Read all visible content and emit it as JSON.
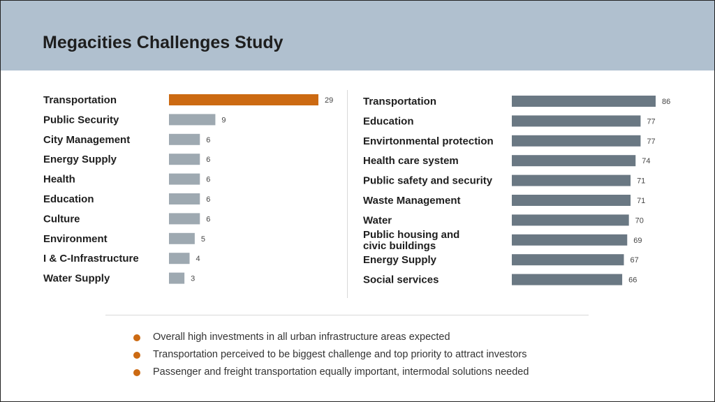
{
  "title": "Megacities Challenges Study",
  "colors": {
    "highlight": "#cc6a12",
    "left_bar": "#9ea9b1",
    "right_bar": "#6a7883",
    "header_bg": "#b0c0cf"
  },
  "chart_data": [
    {
      "type": "bar",
      "orientation": "horizontal",
      "categories": [
        "Transportation",
        "Public Security",
        "City Management",
        "Energy Supply",
        "Health",
        "Education",
        "Culture",
        "Environment",
        "I & C-Infrastructure",
        "Water Supply"
      ],
      "values": [
        29,
        9,
        6,
        6,
        6,
        6,
        6,
        5,
        4,
        3
      ],
      "highlight_index": 0,
      "xlim": [
        0,
        29
      ],
      "grid": false
    },
    {
      "type": "bar",
      "orientation": "horizontal",
      "categories": [
        "Transportation",
        "Education",
        "Envirtonmental protection",
        "Health  care system",
        "Public safety and security",
        "Waste Management",
        "Water",
        "Public housing and\ncivic buildings",
        "Energy Supply",
        "Social services"
      ],
      "values": [
        86,
        77,
        77,
        74,
        71,
        71,
        70,
        69,
        67,
        66
      ],
      "xlim": [
        0,
        86
      ],
      "grid": false
    }
  ],
  "bullets": [
    "Overall high investments in all urban infrastructure areas expected",
    "Transportation perceived to be biggest challenge and top priority to attract investors",
    "Passenger and freight transportation equally important, intermodal solutions needed"
  ]
}
